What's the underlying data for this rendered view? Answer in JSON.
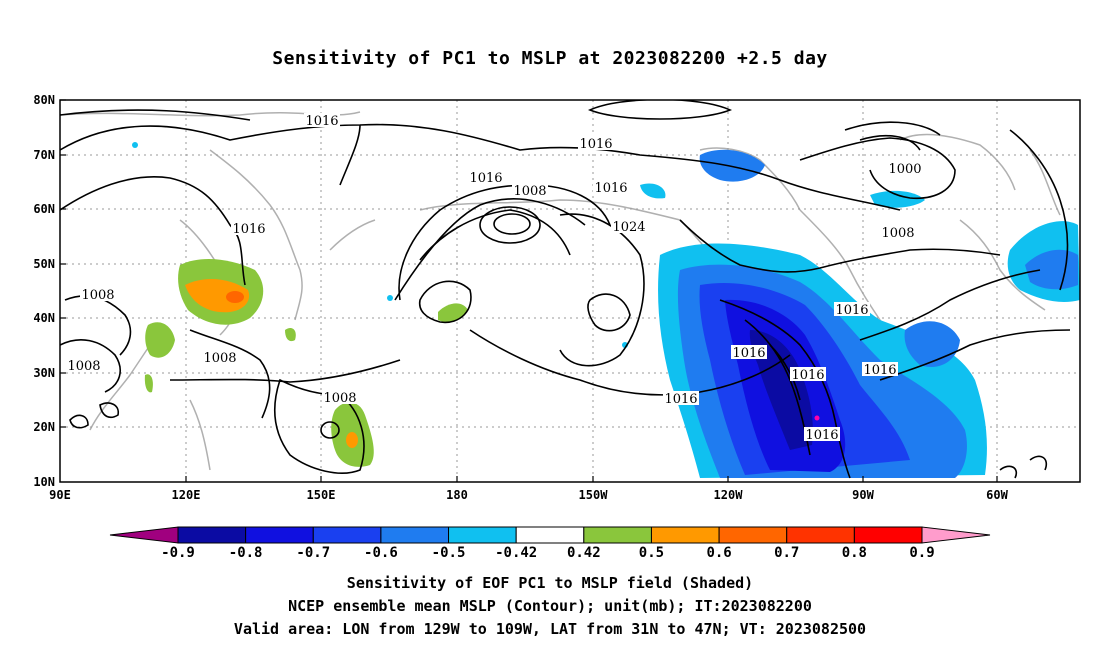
{
  "title": "Sensitivity of PC1 to MSLP at 2023082200 +2.5 day",
  "map": {
    "lat_ticks": [
      "80N",
      "70N",
      "60N",
      "50N",
      "40N",
      "30N",
      "20N",
      "10N"
    ],
    "lon_ticks": [
      "90E",
      "120E",
      "150E",
      "180",
      "150W",
      "120W",
      "90W",
      "60W"
    ],
    "contour_labels": [
      "1016",
      "1016",
      "1016",
      "1008",
      "1016",
      "1024",
      "1016",
      "1000",
      "1008",
      "1016",
      "1016",
      "1008",
      "1008",
      "1008",
      "1008",
      "1016",
      "1016",
      "1016",
      "1016"
    ]
  },
  "colorbar": {
    "ticks": [
      "-0.9",
      "-0.8",
      "-0.7",
      "-0.6",
      "-0.5",
      "-0.42",
      "0.42",
      "0.5",
      "0.6",
      "0.7",
      "0.8",
      "0.9"
    ],
    "colors": [
      "#a0007f",
      "#0b0ba3",
      "#1010e0",
      "#1a40f0",
      "#1f7cf0",
      "#10c0f0",
      "#ffffff",
      "#8ac63c",
      "#ff9900",
      "#ff6600",
      "#ff3300",
      "#ff0000",
      "#ff9ccc"
    ]
  },
  "caption": {
    "line1": "Sensitivity of EOF PC1 to MSLP field (Shaded)",
    "line2": "NCEP ensemble mean MSLP (Contour); unit(mb); IT:2023082200",
    "line3": "Valid area: LON from 129W to 109W, LAT from 31N to 47N; VT: 2023082500"
  }
}
